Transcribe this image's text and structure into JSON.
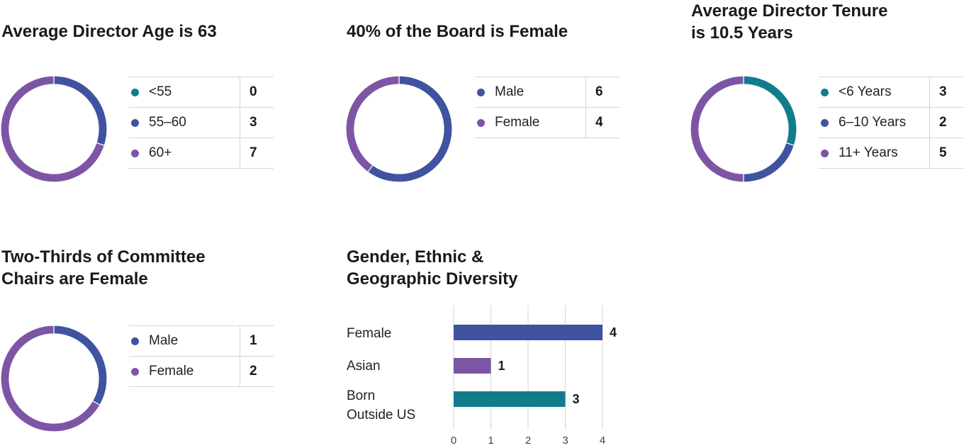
{
  "colors": {
    "teal": "#127d8a",
    "blue": "#3f53a0",
    "purple": "#7d55a5",
    "grid": "#d4d4d4"
  },
  "panels": {
    "age": {
      "title": "Average Director Age is 63",
      "rows": [
        {
          "label": "<55",
          "value": "0",
          "color": "teal"
        },
        {
          "label": "55–60",
          "value": "3",
          "color": "blue"
        },
        {
          "label": "60+",
          "value": "7",
          "color": "purple"
        }
      ]
    },
    "board_gender": {
      "title": "40% of the Board is Female",
      "rows": [
        {
          "label": "Male",
          "value": "6",
          "color": "blue"
        },
        {
          "label": "Female",
          "value": "4",
          "color": "purple"
        }
      ]
    },
    "tenure": {
      "title_lines": [
        "Average Director Tenure",
        "is 10.5 Years"
      ],
      "rows": [
        {
          "label": "<6 Years",
          "value": "3",
          "color": "teal"
        },
        {
          "label": "6–10 Years",
          "value": "2",
          "color": "blue"
        },
        {
          "label": "11+ Years",
          "value": "5",
          "color": "purple"
        }
      ]
    },
    "chairs": {
      "title_lines": [
        "Two-Thirds of Committee",
        "Chairs are Female"
      ],
      "rows": [
        {
          "label": "Male",
          "value": "1",
          "color": "blue"
        },
        {
          "label": "Female",
          "value": "2",
          "color": "purple"
        }
      ]
    },
    "diversity": {
      "title_lines": [
        "Gender, Ethnic &",
        "Geographic Diversity"
      ],
      "category_lines": [
        [
          "Female"
        ],
        [
          "Asian"
        ],
        [
          "Born",
          "Outside US"
        ]
      ]
    }
  },
  "chart_data": [
    {
      "type": "pie",
      "title": "Average Director Age is 63",
      "categories": [
        "<55",
        "55–60",
        "60+"
      ],
      "values": [
        0,
        3,
        7
      ],
      "colors": [
        "#127d8a",
        "#3f53a0",
        "#7d55a5"
      ],
      "legend": "right"
    },
    {
      "type": "pie",
      "title": "40% of the Board is Female",
      "categories": [
        "Male",
        "Female"
      ],
      "values": [
        6,
        4
      ],
      "colors": [
        "#3f53a0",
        "#7d55a5"
      ],
      "legend": "right"
    },
    {
      "type": "pie",
      "title": "Average Director Tenure is 10.5 Years",
      "categories": [
        "<6 Years",
        "6–10 Years",
        "11+ Years"
      ],
      "values": [
        3,
        2,
        5
      ],
      "colors": [
        "#127d8a",
        "#3f53a0",
        "#7d55a5"
      ],
      "legend": "right"
    },
    {
      "type": "pie",
      "title": "Two-Thirds of Committee Chairs are Female",
      "categories": [
        "Male",
        "Female"
      ],
      "values": [
        1,
        2
      ],
      "colors": [
        "#3f53a0",
        "#7d55a5"
      ],
      "legend": "right"
    },
    {
      "type": "bar",
      "orientation": "horizontal",
      "title": "Gender, Ethnic & Geographic Diversity",
      "categories": [
        "Female",
        "Asian",
        "Born Outside US"
      ],
      "values": [
        4,
        1,
        3
      ],
      "colors": [
        "#3f53a0",
        "#7d55a5",
        "#127d8a"
      ],
      "xlim": [
        0,
        4
      ],
      "xticks": [
        0,
        1,
        2,
        3,
        4
      ],
      "grid": true
    }
  ]
}
